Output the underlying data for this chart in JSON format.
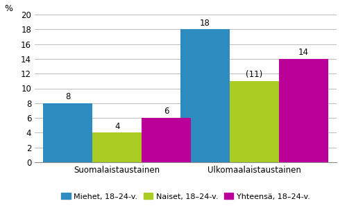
{
  "groups": [
    "Suomalaistaustainen",
    "Ulkomaalaistaustainen"
  ],
  "series": [
    {
      "name": "Miehet, 18–24-v.",
      "values": [
        8,
        18
      ],
      "color": "#2E8BC0"
    },
    {
      "name": "Naiset, 18–24-v.",
      "values": [
        4,
        11
      ],
      "color": "#AACC22"
    },
    {
      "name": "Yhteensä, 18–24-v.",
      "values": [
        6,
        14
      ],
      "color": "#BB0099"
    }
  ],
  "bar_labels": [
    [
      "8",
      "4",
      "6"
    ],
    [
      "18",
      "(11)",
      "14"
    ]
  ],
  "ylim": [
    0,
    20
  ],
  "yticks": [
    0,
    2,
    4,
    6,
    8,
    10,
    12,
    14,
    16,
    18,
    20
  ],
  "ylabel": "%",
  "background_color": "#ffffff",
  "grid_color": "#bbbbbb",
  "bar_width": 0.18,
  "legend_fontsize": 8,
  "label_fontsize": 8.5,
  "tick_fontsize": 8.5,
  "ylabel_fontsize": 9,
  "group_centers": [
    0.3,
    0.8
  ],
  "xlim": [
    0.0,
    1.1
  ]
}
